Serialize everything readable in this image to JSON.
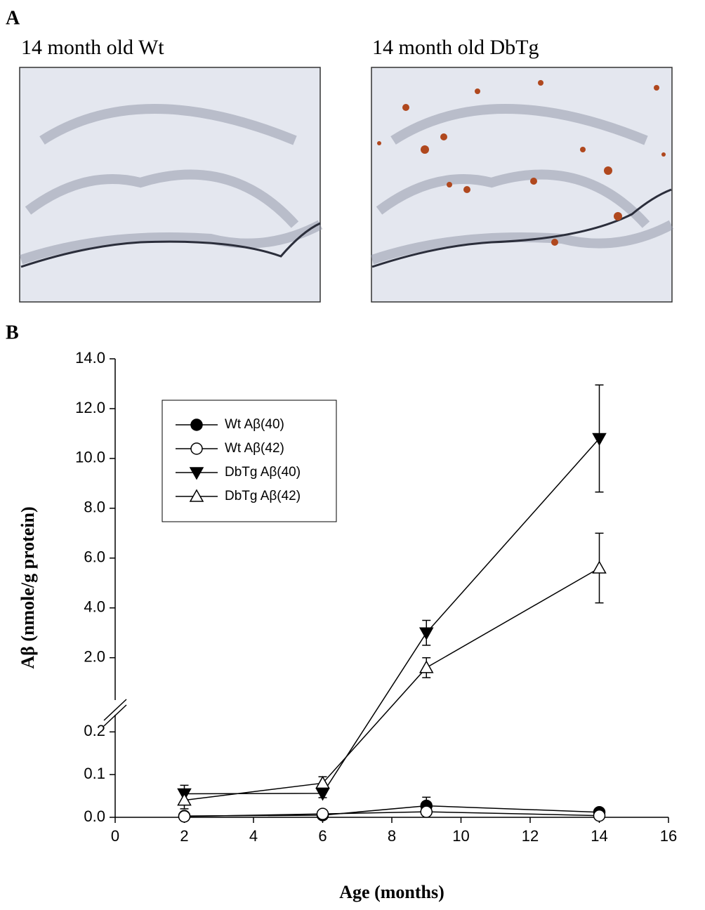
{
  "panel_labels": [
    "A",
    "B"
  ],
  "images": [
    {
      "caption": "14 month old Wt"
    },
    {
      "caption": "14 month old DbTg"
    }
  ],
  "chart_data": {
    "type": "line",
    "xlabel": "Age (months)",
    "ylabel": "Aβ (nmole/g protein)",
    "x": [
      2,
      6,
      9,
      14
    ],
    "xlim": [
      0,
      16
    ],
    "xticks": [
      0,
      2,
      4,
      6,
      8,
      10,
      12,
      14,
      16
    ],
    "y_break": true,
    "ylim_lower": [
      0,
      0.24
    ],
    "yticks_lower": [
      {
        "value": 0,
        "label": "0.0"
      },
      {
        "value": 0.1,
        "label": "0.1"
      },
      {
        "value": 0.2,
        "label": "0.2"
      }
    ],
    "ylim_upper": [
      0.3,
      14
    ],
    "yticks_upper": [
      {
        "value": 2,
        "label": "2.0"
      },
      {
        "value": 4,
        "label": "4.0"
      },
      {
        "value": 6,
        "label": "6.0"
      },
      {
        "value": 8,
        "label": "8.0"
      },
      {
        "value": 10,
        "label": "10.0"
      },
      {
        "value": 12,
        "label": "12.0"
      },
      {
        "value": 14,
        "label": "14.0"
      }
    ],
    "series": [
      {
        "name": "Wt Aβ(40)",
        "color": "#000000",
        "marker": "circle",
        "filled": true,
        "values": [
          0.003,
          0.005,
          0.027,
          0.012
        ],
        "errors": [
          0.003,
          0.003,
          0.02,
          0.005
        ]
      },
      {
        "name": "Wt Aβ(42)",
        "color": "#000000",
        "marker": "circle",
        "filled": false,
        "values": [
          0.002,
          0.008,
          0.013,
          0.004
        ],
        "errors": [
          0.002,
          0.003,
          0.006,
          0.003
        ]
      },
      {
        "name": "DbTg Aβ(40)",
        "color": "#000000",
        "marker": "triangle-down",
        "filled": true,
        "values": [
          0.055,
          0.056,
          3.0,
          10.8
        ],
        "errors": [
          0.02,
          0.01,
          0.5,
          2.15
        ]
      },
      {
        "name": "DbTg Aβ(42)",
        "color": "#000000",
        "marker": "triangle-up",
        "filled": false,
        "values": [
          0.04,
          0.08,
          1.6,
          5.6
        ],
        "errors": [
          0.02,
          0.015,
          0.4,
          1.4
        ]
      }
    ]
  }
}
